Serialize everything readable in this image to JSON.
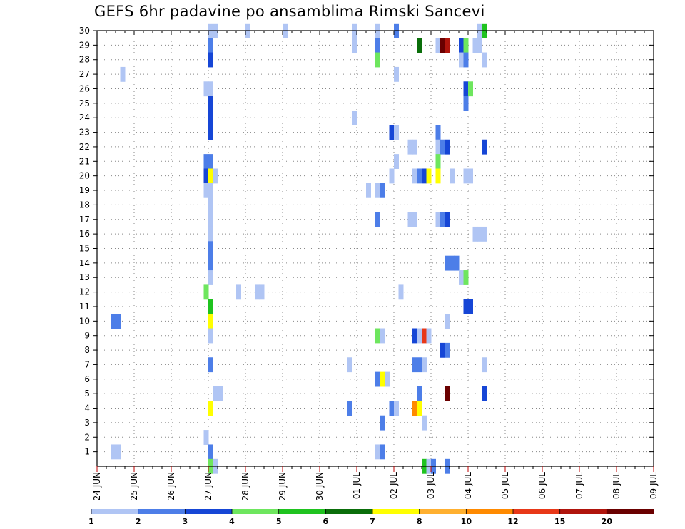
{
  "chart_data": {
    "type": "heatmap",
    "title": "GEFS 6hr padavine po ansamblima Rimski Sancevi",
    "xlabel": "",
    "ylabel": "",
    "x_tick_labels": [
      "24 JUN",
      "25 JUN",
      "26 JUN",
      "27 JUN",
      "28 JUN",
      "29 JUN",
      "30 JUN",
      "01 JUL",
      "02 JUL",
      "03 JUL",
      "04 JUL",
      "05 JUL",
      "06 JUL",
      "07 JUL",
      "08 JUL",
      "09 JUL"
    ],
    "y_tick_labels": [
      "1",
      "2",
      "3",
      "4",
      "5",
      "6",
      "7",
      "8",
      "9",
      "10",
      "11",
      "12",
      "13",
      "14",
      "15",
      "16",
      "17",
      "18",
      "19",
      "20",
      "21",
      "22",
      "23",
      "24",
      "25",
      "26",
      "27",
      "28",
      "29",
      "30"
    ],
    "xlim": [
      0,
      60
    ],
    "ylim": [
      0,
      30
    ],
    "x_unit": "6-hour step from 24 JUN 00Z",
    "grid": true,
    "legend": {
      "placement": "bottom",
      "labels": [
        "1",
        "2",
        "3",
        "4",
        "5",
        "6",
        "7",
        "8",
        "10",
        "12",
        "15",
        "20"
      ],
      "colors": [
        "#b0c5f4",
        "#4d7ee8",
        "#1646d6",
        "#6ee65e",
        "#1fc31f",
        "#0a6e0a",
        "#ffff00",
        "#ffb030",
        "#ff8a00",
        "#e83818",
        "#b0140c",
        "#6a0000"
      ]
    },
    "cells": [
      {
        "x": 12.5,
        "y": 29,
        "c": 1
      },
      {
        "x": 12,
        "y": 29,
        "c": 1
      },
      {
        "x": 12,
        "y": 28,
        "c": 2
      },
      {
        "x": 12,
        "y": 27,
        "c": 3
      },
      {
        "x": 11.5,
        "y": 25,
        "c": 1
      },
      {
        "x": 12,
        "y": 25,
        "c": 1
      },
      {
        "x": 12,
        "y": 24,
        "c": 3
      },
      {
        "x": 12,
        "y": 23,
        "c": 3
      },
      {
        "x": 12,
        "y": 22,
        "c": 3
      },
      {
        "x": 11.5,
        "y": 20,
        "c": 2
      },
      {
        "x": 12,
        "y": 20,
        "c": 2
      },
      {
        "x": 11.5,
        "y": 19,
        "c": 3
      },
      {
        "x": 12,
        "y": 19,
        "c": 7
      },
      {
        "x": 12.5,
        "y": 19,
        "c": 1
      },
      {
        "x": 11.5,
        "y": 18,
        "c": 1
      },
      {
        "x": 12,
        "y": 18,
        "c": 1
      },
      {
        "x": 12,
        "y": 17,
        "c": 1
      },
      {
        "x": 12,
        "y": 16,
        "c": 1
      },
      {
        "x": 12,
        "y": 15,
        "c": 1
      },
      {
        "x": 12,
        "y": 14,
        "c": 2
      },
      {
        "x": 12,
        "y": 13,
        "c": 2
      },
      {
        "x": 12,
        "y": 12,
        "c": 1
      },
      {
        "x": 11.5,
        "y": 11,
        "c": 4
      },
      {
        "x": 12,
        "y": 10,
        "c": 5
      },
      {
        "x": 12,
        "y": 9,
        "c": 7
      },
      {
        "x": 12,
        "y": 8,
        "c": 1
      },
      {
        "x": 12,
        "y": 6,
        "c": 2
      },
      {
        "x": 12,
        "y": 3,
        "c": 7
      },
      {
        "x": 12.5,
        "y": 4,
        "c": 1
      },
      {
        "x": 13,
        "y": 4,
        "c": 1
      },
      {
        "x": 11.5,
        "y": 1,
        "c": 1
      },
      {
        "x": 12,
        "y": 0,
        "c": 2
      },
      {
        "x": 12,
        "y": -1,
        "c": 4
      },
      {
        "x": 12.5,
        "y": -1,
        "c": 1
      },
      {
        "x": 2.5,
        "y": 26,
        "c": 1
      },
      {
        "x": 16,
        "y": 29,
        "c": 1
      },
      {
        "x": 15,
        "y": 11,
        "c": 1
      },
      {
        "x": 17,
        "y": 11,
        "c": 1
      },
      {
        "x": 17.5,
        "y": 11,
        "c": 1
      },
      {
        "x": 1.5,
        "y": 9,
        "c": 2
      },
      {
        "x": 2,
        "y": 9,
        "c": 2
      },
      {
        "x": 1.5,
        "y": 0,
        "c": 1
      },
      {
        "x": 2,
        "y": 0,
        "c": 1
      },
      {
        "x": 20,
        "y": 29,
        "c": 1
      },
      {
        "x": 27.5,
        "y": 29,
        "c": 1
      },
      {
        "x": 27.5,
        "y": 28,
        "c": 1
      },
      {
        "x": 27.5,
        "y": 28,
        "c": 1
      },
      {
        "x": 30,
        "y": 29,
        "c": 1
      },
      {
        "x": 30,
        "y": 28,
        "c": 2
      },
      {
        "x": 30,
        "y": 27,
        "c": 4
      },
      {
        "x": 32,
        "y": 29,
        "c": 2
      },
      {
        "x": 32,
        "y": 26,
        "c": 1
      },
      {
        "x": 27.5,
        "y": 23,
        "c": 1
      },
      {
        "x": 31.5,
        "y": 22,
        "c": 3
      },
      {
        "x": 32,
        "y": 22,
        "c": 1
      },
      {
        "x": 33.5,
        "y": 21,
        "c": 1
      },
      {
        "x": 34,
        "y": 21,
        "c": 1
      },
      {
        "x": 32,
        "y": 20,
        "c": 1
      },
      {
        "x": 31.5,
        "y": 19,
        "c": 1
      },
      {
        "x": 34,
        "y": 19,
        "c": 1
      },
      {
        "x": 34.5,
        "y": 19,
        "c": 2
      },
      {
        "x": 35,
        "y": 19,
        "c": 3
      },
      {
        "x": 35.5,
        "y": 19,
        "c": 7
      },
      {
        "x": 29,
        "y": 18,
        "c": 1
      },
      {
        "x": 30,
        "y": 18,
        "c": 1
      },
      {
        "x": 30.5,
        "y": 18,
        "c": 2
      },
      {
        "x": 30,
        "y": 16,
        "c": 2
      },
      {
        "x": 33.5,
        "y": 16,
        "c": 1
      },
      {
        "x": 34,
        "y": 16,
        "c": 1
      },
      {
        "x": 32.5,
        "y": 11,
        "c": 1
      },
      {
        "x": 30,
        "y": 8,
        "c": 4
      },
      {
        "x": 30.5,
        "y": 8,
        "c": 1
      },
      {
        "x": 27,
        "y": 6,
        "c": 1
      },
      {
        "x": 30,
        "y": 5,
        "c": 2
      },
      {
        "x": 30.5,
        "y": 5,
        "c": 7
      },
      {
        "x": 31,
        "y": 5,
        "c": 1
      },
      {
        "x": 34,
        "y": 8,
        "c": 3
      },
      {
        "x": 34.5,
        "y": 8,
        "c": 1
      },
      {
        "x": 35,
        "y": 8,
        "c": 10
      },
      {
        "x": 35.5,
        "y": 8,
        "c": 1
      },
      {
        "x": 34,
        "y": 6,
        "c": 2
      },
      {
        "x": 34.5,
        "y": 6,
        "c": 2
      },
      {
        "x": 35,
        "y": 6,
        "c": 1
      },
      {
        "x": 27,
        "y": 3,
        "c": 2
      },
      {
        "x": 31.5,
        "y": 3,
        "c": 2
      },
      {
        "x": 32,
        "y": 3,
        "c": 1
      },
      {
        "x": 34,
        "y": 3,
        "c": 9
      },
      {
        "x": 34.5,
        "y": 3,
        "c": 7
      },
      {
        "x": 30.5,
        "y": 2,
        "c": 2
      },
      {
        "x": 35,
        "y": 2,
        "c": 1
      },
      {
        "x": 34.5,
        "y": 4,
        "c": 2
      },
      {
        "x": 30,
        "y": 0,
        "c": 1
      },
      {
        "x": 30.5,
        "y": 0,
        "c": 2
      },
      {
        "x": 35,
        "y": -1,
        "c": 5
      },
      {
        "x": 35.5,
        "y": -1,
        "c": 1
      },
      {
        "x": 36,
        "y": -1,
        "c": 2
      },
      {
        "x": 34.5,
        "y": 28,
        "c": 6
      },
      {
        "x": 36.5,
        "y": 28,
        "c": 1
      },
      {
        "x": 37,
        "y": 28,
        "c": 12
      },
      {
        "x": 37.5,
        "y": 28,
        "c": 11
      },
      {
        "x": 39,
        "y": 28,
        "c": 3
      },
      {
        "x": 39.5,
        "y": 28,
        "c": 4
      },
      {
        "x": 40.5,
        "y": 28,
        "c": 1
      },
      {
        "x": 41,
        "y": 28,
        "c": 1
      },
      {
        "x": 39,
        "y": 27,
        "c": 1
      },
      {
        "x": 39.5,
        "y": 27,
        "c": 2
      },
      {
        "x": 41.5,
        "y": 27,
        "c": 1
      },
      {
        "x": 41.5,
        "y": 29,
        "c": 5
      },
      {
        "x": 41,
        "y": 29,
        "c": 1
      },
      {
        "x": 39.5,
        "y": 25,
        "c": 3
      },
      {
        "x": 40,
        "y": 25,
        "c": 4
      },
      {
        "x": 39.5,
        "y": 24,
        "c": 2
      },
      {
        "x": 36.5,
        "y": 22,
        "c": 2
      },
      {
        "x": 36.5,
        "y": 21,
        "c": 1
      },
      {
        "x": 37,
        "y": 21,
        "c": 2
      },
      {
        "x": 37.5,
        "y": 21,
        "c": 3
      },
      {
        "x": 41.5,
        "y": 21,
        "c": 3
      },
      {
        "x": 36.5,
        "y": 20,
        "c": 4
      },
      {
        "x": 36.5,
        "y": 19,
        "c": 7
      },
      {
        "x": 38,
        "y": 19,
        "c": 1
      },
      {
        "x": 39.5,
        "y": 19,
        "c": 1
      },
      {
        "x": 40,
        "y": 19,
        "c": 1
      },
      {
        "x": 36.5,
        "y": 16,
        "c": 1
      },
      {
        "x": 37,
        "y": 16,
        "c": 2
      },
      {
        "x": 37.5,
        "y": 16,
        "c": 3
      },
      {
        "x": 40.5,
        "y": 15,
        "c": 1
      },
      {
        "x": 41,
        "y": 15,
        "c": 1
      },
      {
        "x": 41.5,
        "y": 15,
        "c": 1
      },
      {
        "x": 37.5,
        "y": 13,
        "c": 2
      },
      {
        "x": 38,
        "y": 13,
        "c": 2
      },
      {
        "x": 38.5,
        "y": 13,
        "c": 2
      },
      {
        "x": 39,
        "y": 12,
        "c": 1
      },
      {
        "x": 39.5,
        "y": 12,
        "c": 4
      },
      {
        "x": 39.5,
        "y": 10,
        "c": 3
      },
      {
        "x": 40,
        "y": 10,
        "c": 3
      },
      {
        "x": 37.5,
        "y": 9,
        "c": 1
      },
      {
        "x": 37,
        "y": 7,
        "c": 3
      },
      {
        "x": 37.5,
        "y": 7,
        "c": 2
      },
      {
        "x": 41.5,
        "y": 6,
        "c": 1
      },
      {
        "x": 37.5,
        "y": 4,
        "c": 12
      },
      {
        "x": 41.5,
        "y": 4,
        "c": 3
      },
      {
        "x": 37.5,
        "y": -1,
        "c": 2
      }
    ]
  }
}
